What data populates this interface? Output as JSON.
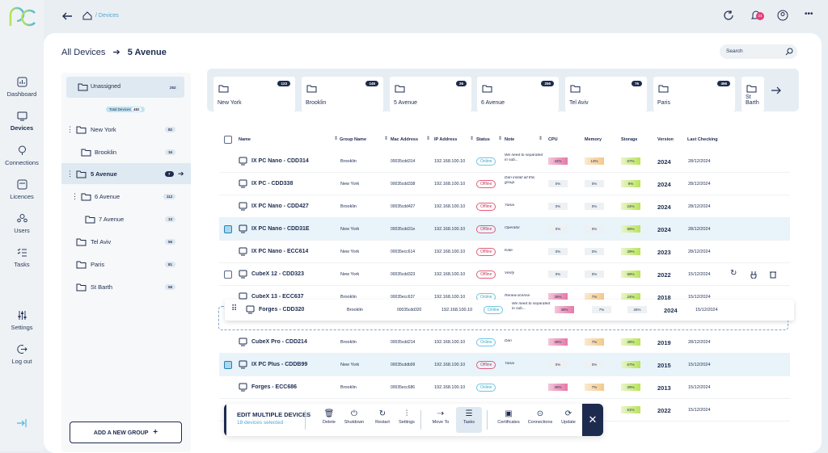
{
  "nav": [
    {
      "label": "Dashboard",
      "icon": "dashboard-icon"
    },
    {
      "label": "Devices",
      "icon": "devices-icon"
    },
    {
      "label": "Connections",
      "icon": "connections-icon"
    },
    {
      "label": "Licences",
      "icon": "licences-icon"
    },
    {
      "label": "Users",
      "icon": "users-icon"
    },
    {
      "label": "Tasks",
      "icon": "tasks-icon"
    },
    {
      "label": "Settings",
      "icon": "settings-icon"
    },
    {
      "label": "Log out",
      "icon": "logout-icon"
    }
  ],
  "topbar": {
    "breadcrumb": "Devices",
    "badge": "24"
  },
  "header": {
    "root": "All Devices",
    "current": "5 Avenue",
    "search_placeholder": "Search"
  },
  "tree": [
    {
      "label": "Unassigned",
      "count": "252"
    },
    {
      "label": "Total Devices",
      "count": "482"
    },
    {
      "label": "New York",
      "count": "82"
    },
    {
      "label": "Brooklin",
      "count": "16"
    },
    {
      "label": "5 Avenue",
      "count": "7"
    },
    {
      "label": "6 Avenue",
      "count": "112"
    },
    {
      "label": "7 Avenue",
      "count": "13"
    },
    {
      "label": "Tel Aviv",
      "count": "56"
    },
    {
      "label": "Paris",
      "count": "81"
    },
    {
      "label": "St Barth",
      "count": "58"
    }
  ],
  "add_group": "ADD A NEW GROUP",
  "locations": [
    {
      "name": "New York",
      "count": "123"
    },
    {
      "name": "Brooklin",
      "count": "145"
    },
    {
      "name": "5 Avenue",
      "count": "26"
    },
    {
      "name": "6 Avenue",
      "count": "256"
    },
    {
      "name": "Tel Aviv",
      "count": "76"
    },
    {
      "name": "Paris",
      "count": "456"
    },
    {
      "name": "St Barth",
      "count": ""
    }
  ],
  "columns": [
    "Name",
    "Group Name",
    "Mac Address",
    "IP Address",
    "Status",
    "Note",
    "CPU",
    "Memory",
    "Storage",
    "Version",
    "Last Checking"
  ],
  "rows": [
    {
      "name": "IX PC Nano - CDD314",
      "group": "Brooklin",
      "mac": "00035cdd314",
      "ip": "192.168.100.10",
      "status": "Online",
      "note": "We need to separated in sub...",
      "cpu": "42%",
      "mem": "13%",
      "sto": "67%",
      "ver": "2024",
      "date": "28/12/2024"
    },
    {
      "name": "IX PC - CDD338",
      "group": "New York",
      "mac": "00035cdd338",
      "ip": "192.168.100.10",
      "status": "Offline",
      "note": "Dan install all this group",
      "cpu": "0%",
      "mem": "0%",
      "sto": "9%",
      "ver": "2024",
      "date": "28/12/2024"
    },
    {
      "name": "IX PC Nano - CDD427",
      "group": "Brooklin",
      "mac": "00035cdd427",
      "ip": "192.168.100.10",
      "status": "Offline",
      "note": "Yanai",
      "cpu": "0%",
      "mem": "0%",
      "sto": "24%",
      "ver": "2024",
      "date": "28/12/2024"
    },
    {
      "name": "IX PC Nano - CDD31E",
      "group": "New York",
      "mac": "00035cdd31e",
      "ip": "192.168.100.10",
      "status": "Offline",
      "note": "Operator",
      "cpu": "0%",
      "mem": "0%",
      "sto": "59%",
      "ver": "2024",
      "date": "28/12/2024"
    },
    {
      "name": "IX PC Nano - ECC614",
      "group": "New York",
      "mac": "00035ecc614",
      "ip": "192.168.100.10",
      "status": "Offline",
      "note": "Kate",
      "cpu": "0%",
      "mem": "0%",
      "sto": "29%",
      "ver": "2023",
      "date": "28/12/2024"
    },
    {
      "name": "CubeX 12 - CDD323",
      "group": "New York",
      "mac": "00035cdd323",
      "ip": "192.168.100.10",
      "status": "Offline",
      "note": "Verify",
      "cpu": "0%",
      "mem": "0%",
      "sto": "69%",
      "ver": "2022",
      "date": "15/12/2024"
    },
    {
      "name": "CubeX 13 - ECC637",
      "group": "Brooklin",
      "mac": "00035ecc637",
      "ip": "192.168.100.10",
      "status": "Online",
      "note": "Renew license",
      "cpu": "39%",
      "mem": "7%",
      "sto": "24%",
      "ver": "2018",
      "date": "15/12/2024"
    },
    {
      "name": "Forges - CDD320",
      "group": "Brooklin",
      "mac": "00035cdd320",
      "ip": "192.168.100.10",
      "status": "Online",
      "note": "We need to separated in sub...",
      "cpu": "39%",
      "mem": "7%",
      "sto": "26%",
      "ver": "2024",
      "date": "15/12/2024"
    },
    {
      "name": "CubeX Pro - CDD214",
      "group": "Brooklin",
      "mac": "00035cdd214",
      "ip": "192.168.100.10",
      "status": "Online",
      "note": "Dan",
      "cpu": "39%",
      "mem": "7%",
      "sto": "28%",
      "ver": "2019",
      "date": "28/12/2024"
    },
    {
      "name": "IX PC Plus - CDDB99",
      "group": "New York",
      "mac": "00035cddb99",
      "ip": "192.168.100.10",
      "status": "Offline",
      "note": "Yanai",
      "cpu": "0%",
      "mem": "0%",
      "sto": "67%",
      "ver": "2015",
      "date": "15/12/2024"
    },
    {
      "name": "Forges - ECC686",
      "group": "Brooklin",
      "mac": "00035ecc686",
      "ip": "192.168.100.10",
      "status": "Online",
      "note": "",
      "cpu": "39%",
      "mem": "7%",
      "sto": "29%",
      "ver": "2013",
      "date": "15/12/2024"
    },
    {
      "name": "",
      "group": "",
      "mac": "",
      "ip": "",
      "status": "",
      "note": "",
      "cpu": "",
      "mem": "",
      "sto": "61%",
      "ver": "2022",
      "date": "15/12/2024"
    }
  ],
  "edit_bar": {
    "title": "EDIT MULTIPLE DEVICES",
    "subtitle": "18 devices selected",
    "tools": [
      "Delete",
      "Shutdown",
      "Restart",
      "Settings",
      "Move To",
      "Tasks",
      "Certificates",
      "Connections",
      "Update"
    ]
  },
  "colors": {
    "navy": "#1d2b4f",
    "online": "#3fa7c8",
    "offline": "#c23b5f",
    "selected": "#e8f4fa"
  }
}
